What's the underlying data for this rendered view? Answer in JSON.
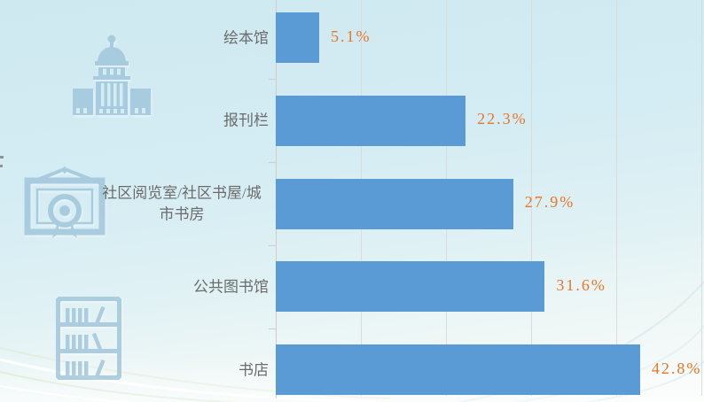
{
  "chart_data": {
    "type": "bar",
    "orientation": "horizontal",
    "title": "",
    "categories": [
      "绘本馆",
      "报刊栏",
      "社区阅览室/社区书屋/城市书房",
      "公共图书馆",
      "书店"
    ],
    "values": [
      5.1,
      22.3,
      27.9,
      31.6,
      42.8
    ],
    "value_labels": [
      "5.1%",
      "22.3%",
      "27.9%",
      "31.6%",
      "42.8%"
    ],
    "xlim": [
      0,
      50
    ],
    "gridline_interval_pct": 10,
    "grid": true,
    "legend": "none",
    "bar_color": "#5B9BD5",
    "value_label_color": "#E8752A",
    "category_label_color": "#6b6b6b",
    "gridline_color": "#d8d8d6"
  },
  "decorations": {
    "icons": [
      {
        "name": "library-building-icon"
      },
      {
        "name": "certificate-frame-icon"
      },
      {
        "name": "bookshelf-icon"
      }
    ],
    "icon_color": "#9cc3da",
    "background_top_color": "#cfe9f1",
    "background_bottom_color": "#f8fcfa"
  }
}
